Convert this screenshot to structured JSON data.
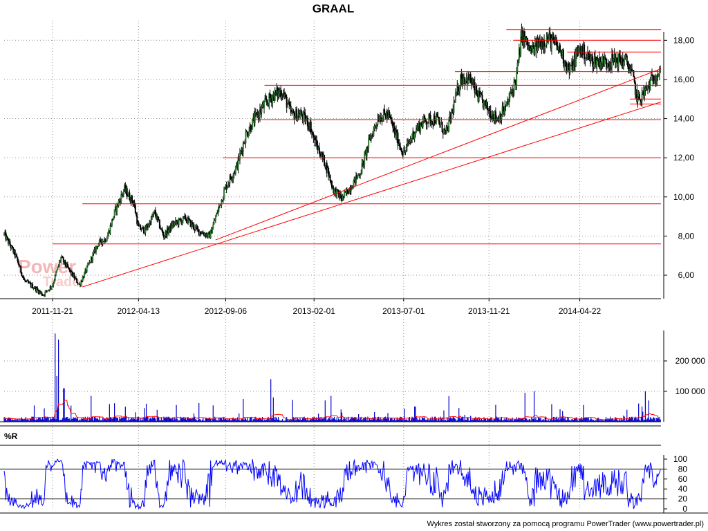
{
  "title": "GRAAL",
  "footer": "Wykres został stworzony za pomocą programu PowerTrader (www.powertrader.pl)",
  "watermark": {
    "line1": "Power",
    "line2": "Trader"
  },
  "colors": {
    "candle": "#000000",
    "candle_up": "#2e7d32",
    "support_lines": "#ff0000",
    "volume": "#0000cc",
    "volume_ma": "#ff0000",
    "williams": "#0000ff",
    "grid": "#909090"
  },
  "chart_data": [
    {
      "type": "candlestick",
      "x_ticks": [
        "2011-11-21",
        "2012-04-13",
        "2012-09-06",
        "2013-02-01",
        "2013-07-01",
        "2013-11-21",
        "2014-04-22"
      ],
      "x_range": [
        "2011-09-01",
        "2014-09-05"
      ],
      "y_ticks": [
        "6,00",
        "8,00",
        "10,00",
        "12,00",
        "14,00",
        "16,00",
        "18,00"
      ],
      "ylim": [
        4.8,
        19.0
      ],
      "grid": true,
      "price_path": [
        [
          "2011-09-01",
          8.1
        ],
        [
          "2011-09-20",
          7.0
        ],
        [
          "2011-10-05",
          5.7
        ],
        [
          "2011-10-20",
          5.4
        ],
        [
          "2011-11-05",
          5.0
        ],
        [
          "2011-11-21",
          5.5
        ],
        [
          "2011-12-05",
          6.9
        ],
        [
          "2011-12-20",
          6.2
        ],
        [
          "2012-01-05",
          5.5
        ],
        [
          "2012-01-20",
          6.5
        ],
        [
          "2012-02-05",
          7.6
        ],
        [
          "2012-02-20",
          7.9
        ],
        [
          "2012-03-05",
          9.3
        ],
        [
          "2012-03-20",
          10.4
        ],
        [
          "2012-04-05",
          9.7
        ],
        [
          "2012-04-13",
          8.4
        ],
        [
          "2012-04-25",
          8.3
        ],
        [
          "2012-05-10",
          9.2
        ],
        [
          "2012-05-25",
          8.0
        ],
        [
          "2012-06-10",
          8.6
        ],
        [
          "2012-07-01",
          8.9
        ],
        [
          "2012-07-20",
          8.3
        ],
        [
          "2012-08-10",
          8.0
        ],
        [
          "2012-08-25",
          9.4
        ],
        [
          "2012-09-06",
          10.5
        ],
        [
          "2012-09-25",
          11.6
        ],
        [
          "2012-10-10",
          13.2
        ],
        [
          "2012-10-25",
          14.0
        ],
        [
          "2012-11-10",
          14.7
        ],
        [
          "2012-11-25",
          15.2
        ],
        [
          "2012-12-10",
          15.4
        ],
        [
          "2012-12-25",
          14.2
        ],
        [
          "2013-01-10",
          14.2
        ],
        [
          "2013-01-25",
          13.7
        ],
        [
          "2013-02-01",
          12.9
        ],
        [
          "2013-02-20",
          11.7
        ],
        [
          "2013-03-05",
          10.4
        ],
        [
          "2013-03-20",
          9.9
        ],
        [
          "2013-04-05",
          10.6
        ],
        [
          "2013-04-20",
          11.3
        ],
        [
          "2013-05-05",
          12.9
        ],
        [
          "2013-05-20",
          14.1
        ],
        [
          "2013-06-05",
          14.2
        ],
        [
          "2013-06-20",
          13.0
        ],
        [
          "2013-07-01",
          12.2
        ],
        [
          "2013-07-20",
          13.4
        ],
        [
          "2013-08-05",
          13.9
        ],
        [
          "2013-08-25",
          14.0
        ],
        [
          "2013-09-10",
          13.2
        ],
        [
          "2013-09-25",
          14.9
        ],
        [
          "2013-10-05",
          16.1
        ],
        [
          "2013-10-20",
          16.0
        ],
        [
          "2013-11-01",
          15.2
        ],
        [
          "2013-11-21",
          14.4
        ],
        [
          "2013-12-05",
          14.0
        ],
        [
          "2013-12-20",
          14.6
        ],
        [
          "2014-01-05",
          16.0
        ],
        [
          "2014-01-15",
          18.3
        ],
        [
          "2014-01-30",
          17.4
        ],
        [
          "2014-02-15",
          17.9
        ],
        [
          "2014-03-01",
          18.1
        ],
        [
          "2014-03-20",
          17.5
        ],
        [
          "2014-04-05",
          16.4
        ],
        [
          "2014-04-22",
          17.6
        ],
        [
          "2014-05-10",
          17.0
        ],
        [
          "2014-06-01",
          16.9
        ],
        [
          "2014-06-25",
          17.0
        ],
        [
          "2014-07-10",
          16.9
        ],
        [
          "2014-07-20",
          16.1
        ],
        [
          "2014-07-28",
          14.9
        ],
        [
          "2014-08-10",
          15.4
        ],
        [
          "2014-08-25",
          16.2
        ],
        [
          "2014-09-05",
          16.5
        ]
      ],
      "horizontal_levels": [
        {
          "price": 7.6,
          "from": "2011-11-21",
          "to": "2014-09-05"
        },
        {
          "price": 9.65,
          "from": "2012-01-10",
          "to": "2014-09-05"
        },
        {
          "price": 12.0,
          "from": "2012-09-01",
          "to": "2014-09-05"
        },
        {
          "price": 13.95,
          "from": "2012-10-20",
          "to": "2014-09-05"
        },
        {
          "price": 15.7,
          "from": "2012-11-10",
          "to": "2014-09-05"
        },
        {
          "price": 16.4,
          "from": "2013-09-25",
          "to": "2014-09-05"
        },
        {
          "price": 17.4,
          "from": "2014-04-01",
          "to": "2014-09-05"
        },
        {
          "price": 18.0,
          "from": "2014-01-01",
          "to": "2014-09-05"
        },
        {
          "price": 18.55,
          "from": "2013-12-20",
          "to": "2014-09-05"
        },
        {
          "price": 15.0,
          "from": "2014-07-15",
          "to": "2014-09-05"
        },
        {
          "price": 14.75,
          "from": "2014-07-15",
          "to": "2014-09-05"
        }
      ],
      "trend_lines": [
        {
          "from": [
            "2012-01-10",
            5.4
          ],
          "to": [
            "2014-09-05",
            14.85
          ]
        },
        {
          "from": [
            "2012-08-20",
            7.8
          ],
          "to": [
            "2014-09-05",
            16.55
          ]
        }
      ]
    },
    {
      "type": "bar",
      "name": "volume",
      "y_ticks": [
        "100 000",
        "200 000"
      ],
      "ylim": [
        0,
        300000
      ],
      "typical_level": 10000,
      "spikes": [
        [
          "2011-11-25",
          290000
        ],
        [
          "2011-12-01",
          270000
        ],
        [
          "2011-11-28",
          150000
        ],
        [
          "2011-12-10",
          110000
        ],
        [
          "2012-01-25",
          85000
        ],
        [
          "2012-10-05",
          75000
        ],
        [
          "2012-11-20",
          140000
        ],
        [
          "2012-11-25",
          80000
        ],
        [
          "2013-03-01",
          85000
        ],
        [
          "2013-02-20",
          70000
        ],
        [
          "2014-01-20",
          95000
        ],
        [
          "2014-02-05",
          100000
        ],
        [
          "2014-08-10",
          100000
        ],
        [
          "2014-07-30",
          60000
        ],
        [
          "2014-08-15",
          70000
        ],
        [
          "2013-07-20",
          50000
        ],
        [
          "2013-10-01",
          45000
        ],
        [
          "2012-06-15",
          55000
        ]
      ]
    },
    {
      "type": "line",
      "name": "%R",
      "title": "%R",
      "y_ticks": [
        "0",
        "20",
        "40",
        "60",
        "80",
        "100"
      ],
      "ylim": [
        0,
        100
      ],
      "ref_lines": [
        20,
        80
      ]
    }
  ]
}
